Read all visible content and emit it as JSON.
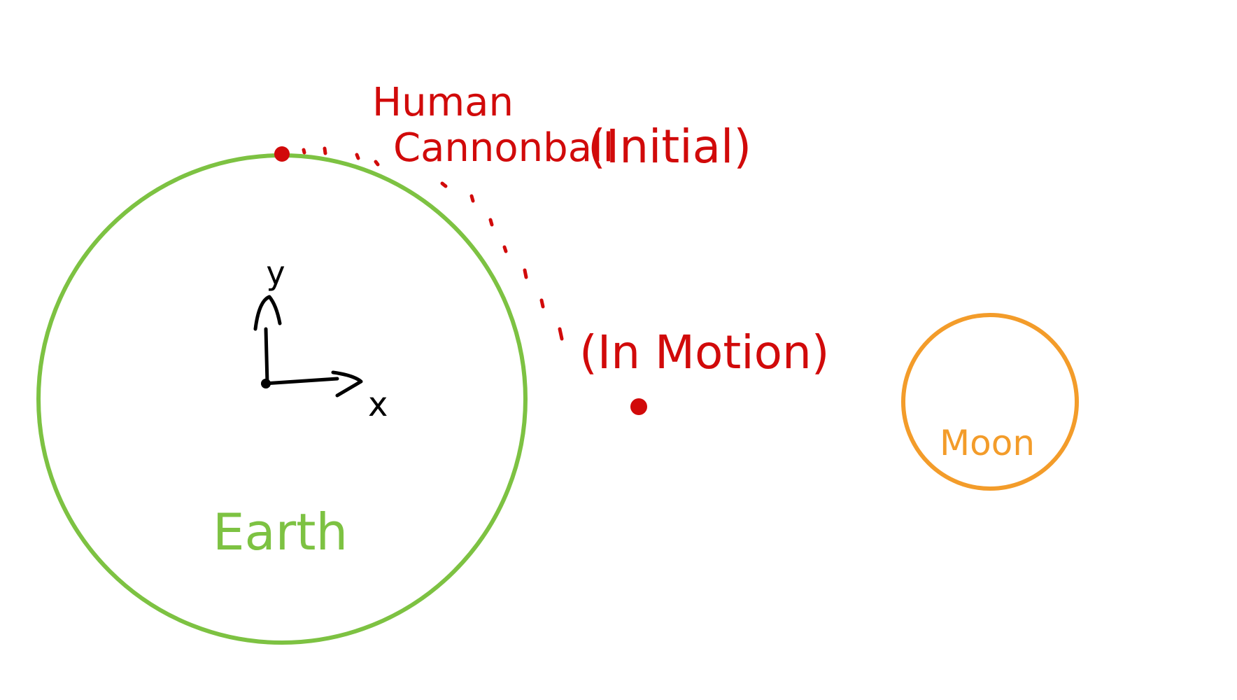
{
  "colors": {
    "background": "#ffffff",
    "earth": "#7dc242",
    "moon": "#f39c2a",
    "cannonball": "#d10a0a",
    "axes": "#000000"
  },
  "labels": {
    "cannonball_line1": "Human",
    "cannonball_line2": "Cannonball",
    "initial": "(Initial)",
    "in_motion": "(In Motion)",
    "earth": "Earth",
    "moon": "Moon",
    "x_axis": "x",
    "y_axis": "y"
  }
}
